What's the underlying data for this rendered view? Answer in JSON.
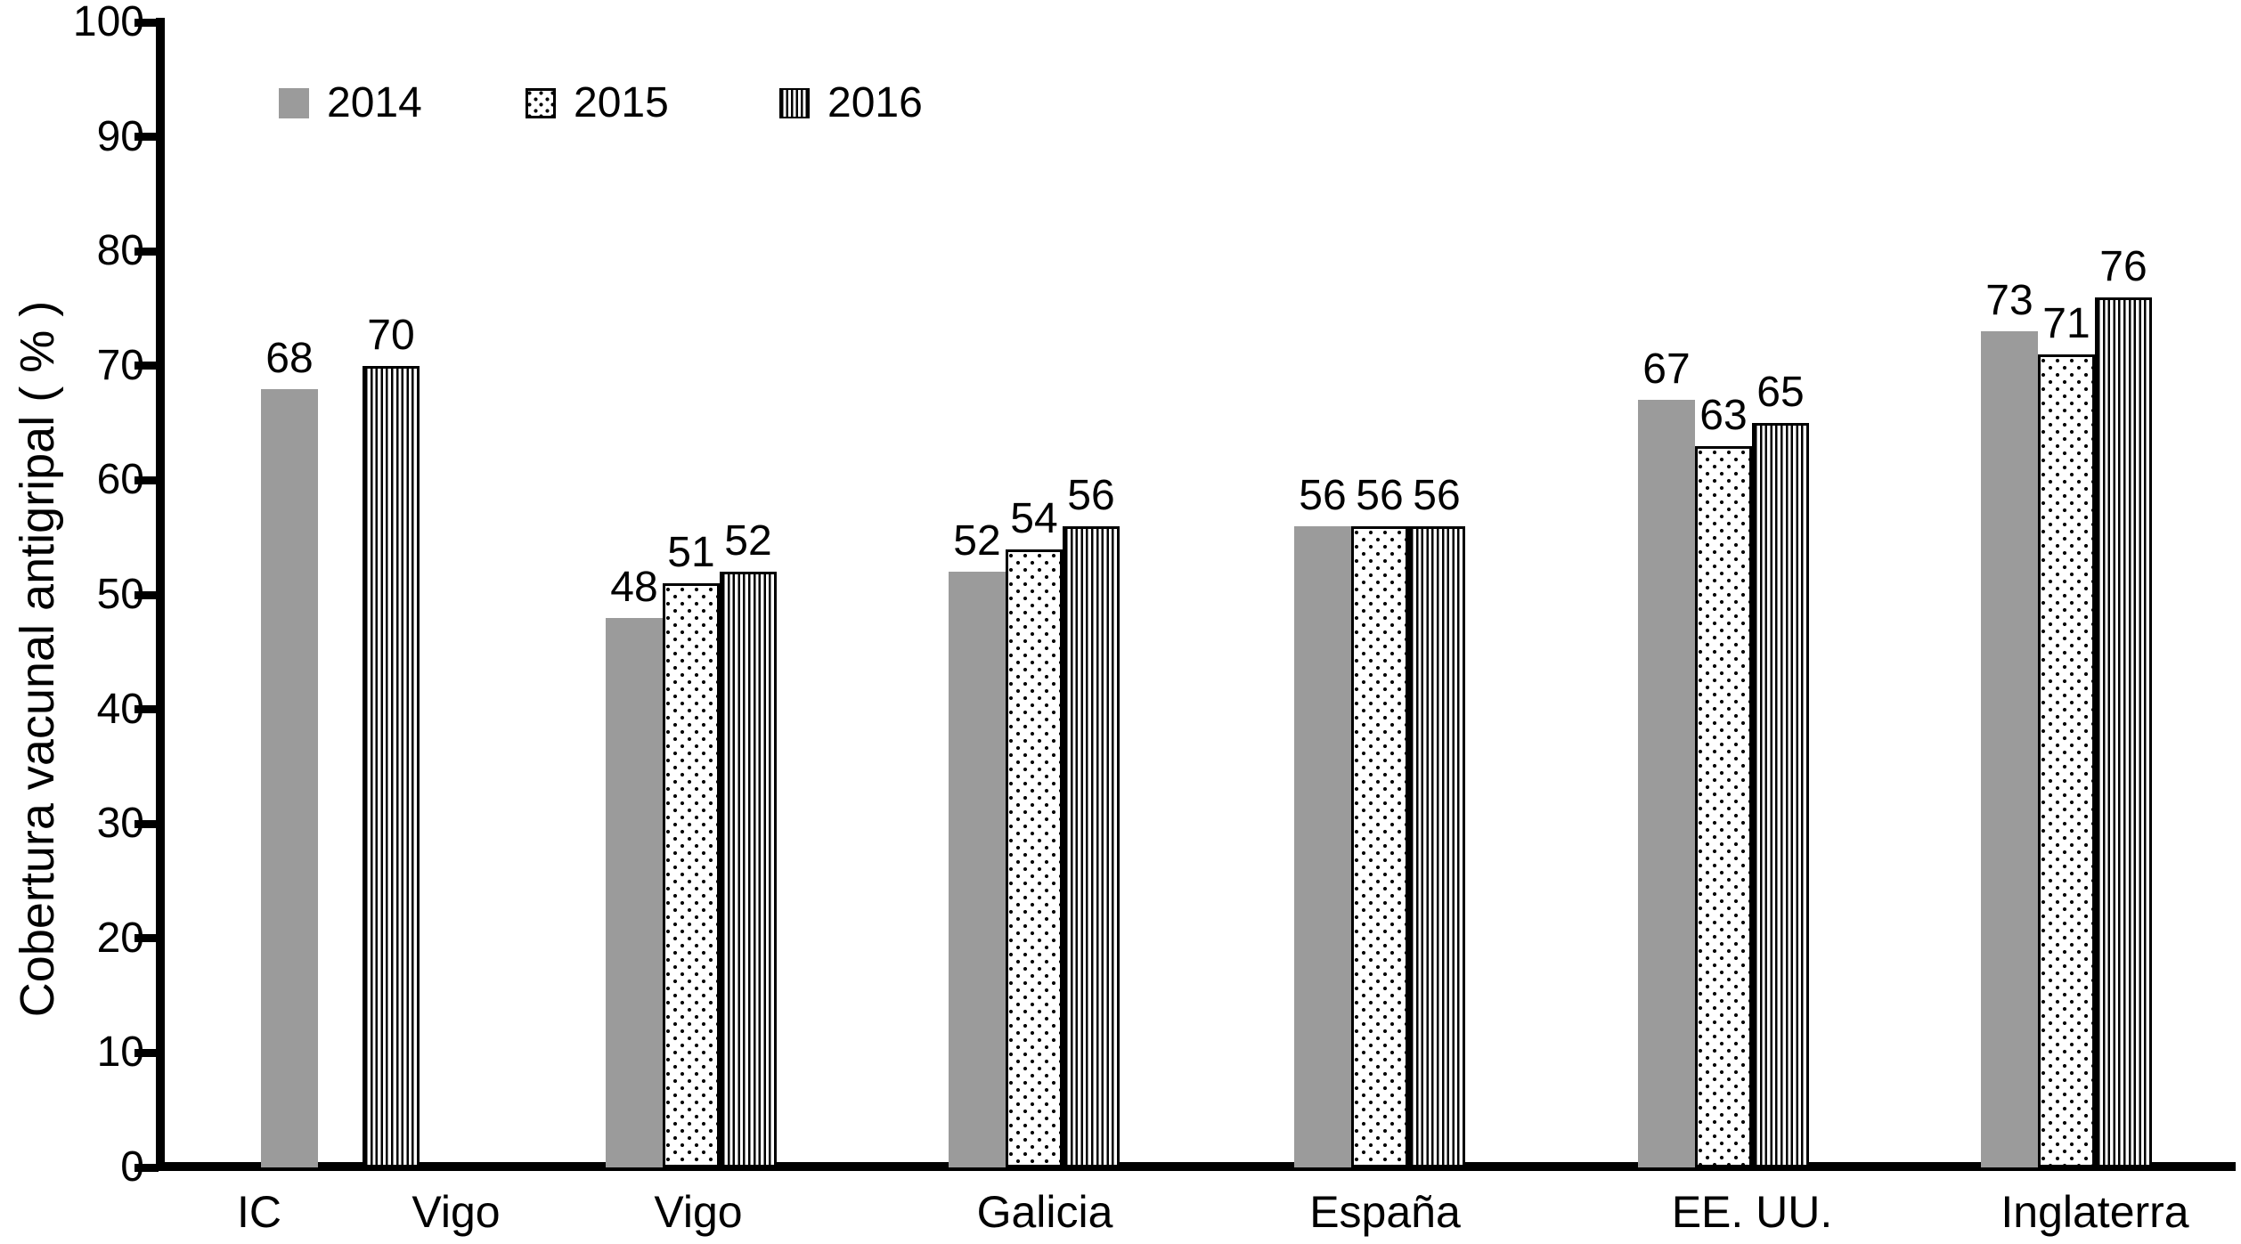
{
  "chart_data": {
    "type": "bar",
    "title": "",
    "xlabel": "",
    "ylabel": "Cobertura vacunal antigripal ( % )",
    "ylim": [
      0,
      100
    ],
    "yticks": [
      0,
      10,
      20,
      30,
      40,
      50,
      60,
      70,
      80,
      90,
      100
    ],
    "grid": false,
    "legend_position": "top-left-inside",
    "series_names": [
      "2014",
      "2015",
      "2016"
    ],
    "legend": [
      {
        "label": "2014",
        "pattern": "solid",
        "fill": "#9b9b9b"
      },
      {
        "label": "2015",
        "pattern": "dots",
        "fill": "#ffffff"
      },
      {
        "label": "2016",
        "pattern": "vertical-stripes",
        "fill": "#ffffff"
      }
    ],
    "categories": [
      "IC",
      "Vigo",
      "Vigo",
      "Galicia",
      "España",
      "EE. UU.",
      "Inglaterra"
    ],
    "groups": [
      {
        "label": "IC",
        "bars": [
          {
            "series": "2014",
            "value": 68
          }
        ]
      },
      {
        "label": "Vigo",
        "bars": [
          {
            "series": "2016",
            "value": 70
          }
        ]
      },
      {
        "label": "Vigo",
        "bars": [
          {
            "series": "2014",
            "value": 48
          },
          {
            "series": "2015",
            "value": 51
          },
          {
            "series": "2016",
            "value": 52
          }
        ]
      },
      {
        "label": "Galicia",
        "bars": [
          {
            "series": "2014",
            "value": 52
          },
          {
            "series": "2015",
            "value": 54
          },
          {
            "series": "2016",
            "value": 56
          }
        ]
      },
      {
        "label": "España",
        "bars": [
          {
            "series": "2014",
            "value": 56
          },
          {
            "series": "2015",
            "value": 56
          },
          {
            "series": "2016",
            "value": 56
          }
        ]
      },
      {
        "label": "EE. UU.",
        "bars": [
          {
            "series": "2014",
            "value": 67
          },
          {
            "series": "2015",
            "value": 63
          },
          {
            "series": "2016",
            "value": 65
          }
        ]
      },
      {
        "label": "Inglaterra",
        "bars": [
          {
            "series": "2014",
            "value": 73
          },
          {
            "series": "2015",
            "value": 71
          },
          {
            "series": "2016",
            "value": 76
          }
        ]
      }
    ],
    "colors": {
      "bar_fill_2014": "#9b9b9b",
      "pattern_ink": "#000000",
      "axis": "#000000",
      "background": "#ffffff",
      "text": "#000000"
    }
  }
}
